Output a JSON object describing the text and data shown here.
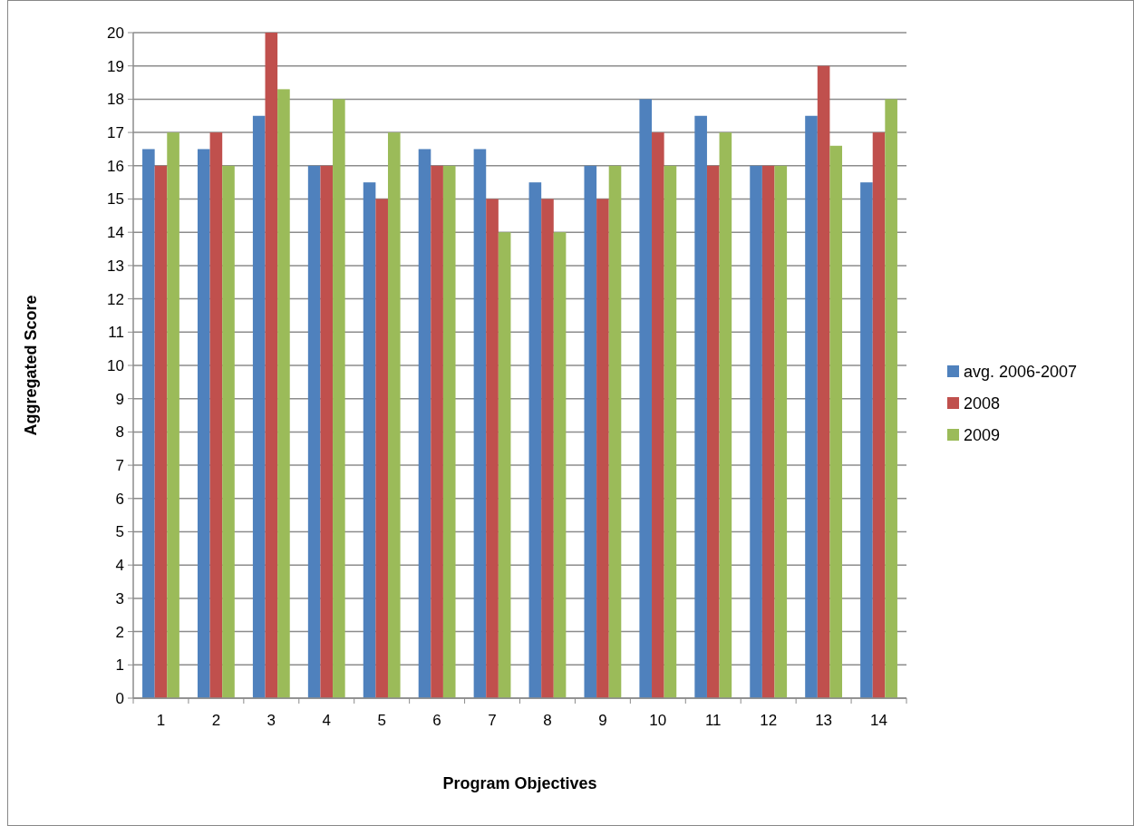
{
  "chart_data": {
    "type": "bar",
    "xlabel": "Program Objectives",
    "ylabel": "Aggregated Score",
    "categories": [
      "1",
      "2",
      "3",
      "4",
      "5",
      "6",
      "7",
      "8",
      "9",
      "10",
      "11",
      "12",
      "13",
      "14"
    ],
    "series": [
      {
        "name": "avg. 2006-2007",
        "color": "#4f81bd",
        "values": [
          16.5,
          16.5,
          17.5,
          16,
          15.5,
          16.5,
          16.5,
          15.5,
          16,
          18,
          17.5,
          16,
          17.5,
          15.5
        ]
      },
      {
        "name": "2008",
        "color": "#c0504d",
        "values": [
          16,
          17,
          20,
          16,
          15,
          16,
          15,
          15,
          15,
          17,
          16,
          16,
          19,
          17
        ]
      },
      {
        "name": "2009",
        "color": "#9bbb59",
        "values": [
          17,
          16,
          18.3,
          18,
          17,
          16,
          14,
          14,
          16,
          16,
          17,
          16,
          16.6,
          18
        ]
      }
    ],
    "ylim": [
      0,
      20
    ],
    "yticks": [
      0,
      1,
      2,
      3,
      4,
      5,
      6,
      7,
      8,
      9,
      10,
      11,
      12,
      13,
      14,
      15,
      16,
      17,
      18,
      19,
      20
    ],
    "grid": "y",
    "legend": "right"
  }
}
